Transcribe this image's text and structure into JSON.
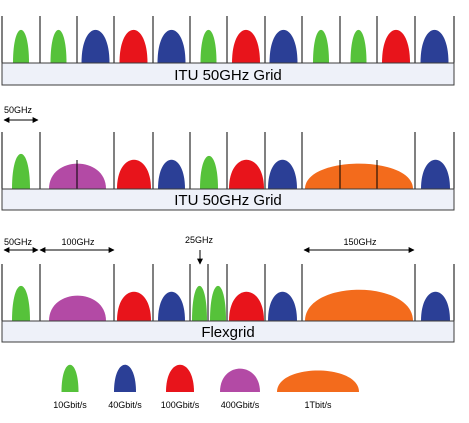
{
  "rows": [
    {
      "bar_label": "ITU 50GHz Grid",
      "slots": [
        "green",
        "green",
        "blue",
        "red",
        "blue",
        "green",
        "red",
        "blue",
        "green",
        "green",
        "red",
        "blue"
      ]
    },
    {
      "bar_label": "ITU 50GHz Grid",
      "dimensions": [
        {
          "label": "50GHz"
        }
      ],
      "slots": [
        "green",
        "purple",
        "purple",
        "red",
        "blue",
        "green",
        "red",
        "blue",
        "orange",
        "orange",
        "orange",
        "blue"
      ]
    },
    {
      "bar_label": "Flexgrid",
      "dimensions": [
        {
          "label": "50GHz"
        },
        {
          "label": "100GHz"
        },
        {
          "label": "25GHz"
        },
        {
          "label": "150GHz"
        }
      ]
    }
  ],
  "legend": [
    {
      "key": "green",
      "label": "10Gbit/s"
    },
    {
      "key": "blue",
      "label": "40Gbit/s"
    },
    {
      "key": "red",
      "label": "100Gbit/s"
    },
    {
      "key": "purple",
      "label": "400Gbit/s"
    },
    {
      "key": "orange",
      "label": "1Tbit/s"
    }
  ],
  "colors": {
    "green": "#56c23a",
    "blue": "#2b3f96",
    "red": "#e8141b",
    "purple": "#b34aa5",
    "orange": "#f36b1c",
    "bar_fill": "#eef1f9",
    "bar_stroke": "#3c3c3c"
  }
}
